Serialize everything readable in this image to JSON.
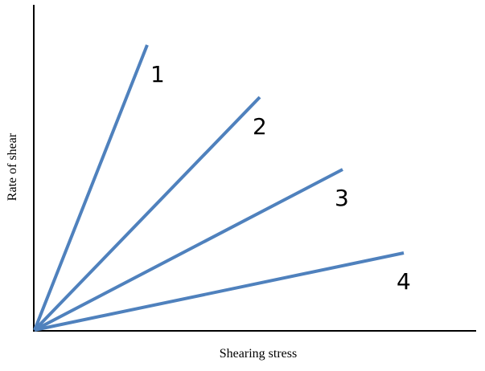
{
  "axes": {
    "x_label": "Shearing stress",
    "y_label": "Rate of shear"
  },
  "lines": [
    {
      "label": "1"
    },
    {
      "label": "2"
    },
    {
      "label": "3"
    },
    {
      "label": "4"
    }
  ]
}
